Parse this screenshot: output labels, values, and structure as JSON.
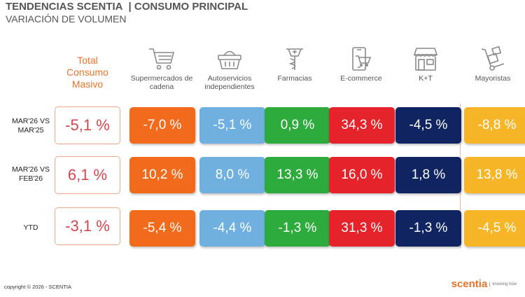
{
  "header": {
    "brand": "TENDENCIAS SCENTIA",
    "section": "| CONSUMO PRINCIPAL",
    "subtitle": "VARIACIÓN DE VOLUMEN"
  },
  "total_label": "Total Consumo Masivo",
  "channels": [
    {
      "label": "Supermercados de cadena",
      "icon": "shopping-cart-icon",
      "color": "#f26b1d"
    },
    {
      "label": "Autoservicios independientes",
      "icon": "shopping-basket-icon",
      "color": "#6fb0e0"
    },
    {
      "label": "Farmacias",
      "icon": "pharmacy-icon",
      "color": "#2eab3d"
    },
    {
      "label": "E-commerce",
      "icon": "mobile-cart-icon",
      "color": "#e6232b"
    },
    {
      "label": "K+T",
      "icon": "store-icon",
      "color": "#0f2460"
    },
    {
      "label": "Mayoristas",
      "icon": "hand-truck-icon",
      "color": "#f7b628"
    }
  ],
  "rows": [
    {
      "label": "MAR'26 VS MAR'25",
      "total": "-5,1 %",
      "values": [
        "-7,0 %",
        "-5,1 %",
        "0,9 %",
        "34,3 %",
        "-4,5 %",
        "-8,8 %"
      ]
    },
    {
      "label": "MAR'26 VS FEB'26",
      "total": "6,1 %",
      "values": [
        "10,2 %",
        "8,0 %",
        "13,3 %",
        "16,0 %",
        "1,8 %",
        "13,8 %"
      ]
    },
    {
      "label": "YTD",
      "total": "-3,1 %",
      "values": [
        "-5,4 %",
        "-4,4 %",
        "-1,3 %",
        "31,3 %",
        "-1,3 %",
        "-4,5 %"
      ]
    }
  ],
  "footer": {
    "copyright": "copyright © 2026 - SCENTIA",
    "logo_word": "scentia",
    "logo_tag": "knowing how"
  }
}
